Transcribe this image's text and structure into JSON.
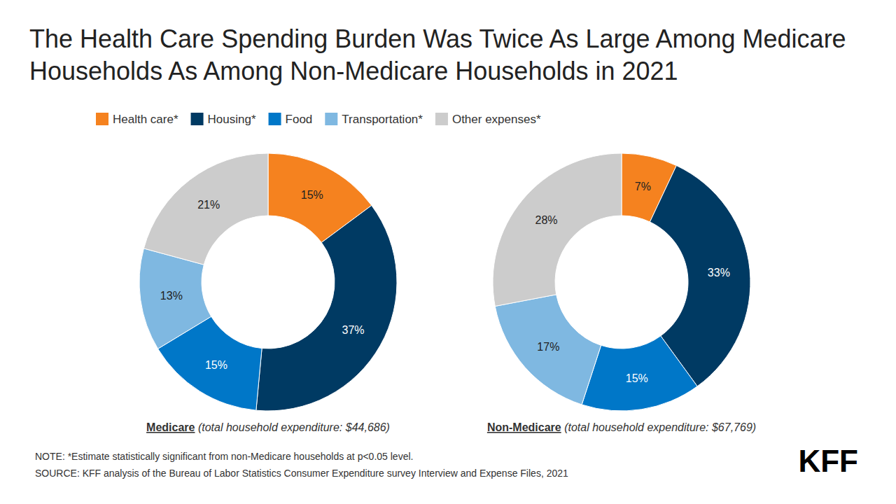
{
  "chart_data": {
    "type": "pie",
    "title": "The Health Care Spending Burden Was Twice As Large Among Medicare Households As Among Non-Medicare Households in 2021",
    "categories": [
      "Health care*",
      "Housing*",
      "Food",
      "Transportation*",
      "Other expenses*"
    ],
    "colors": [
      "#f5821f",
      "#003a63",
      "#0077c8",
      "#7fb8e1",
      "#cccccc"
    ],
    "legend": "top",
    "data_labels": true,
    "series": [
      {
        "name": "Medicare",
        "caption": "(total household expenditure: $44,686)",
        "values": [
          15,
          37,
          15,
          13,
          21
        ],
        "value_labels": [
          "15%",
          "37%",
          "15%",
          "13%",
          "21%"
        ]
      },
      {
        "name": "Non-Medicare",
        "caption": "(total household expenditure: $67,769)",
        "values": [
          7,
          33,
          15,
          17,
          28
        ],
        "value_labels": [
          "7%",
          "33%",
          "15%",
          "17%",
          "28%"
        ]
      }
    ],
    "note": "NOTE: *Estimate statistically significant from non-Medicare households at p<0.05 level.",
    "source": "SOURCE: KFF analysis of the Bureau of Labor Statistics Consumer Expenditure survey Interview and Expense Files, 2021",
    "logo": "KFF"
  }
}
